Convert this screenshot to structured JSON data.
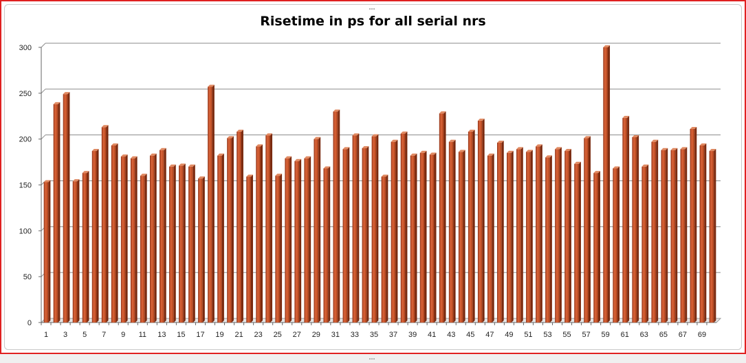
{
  "chart_data": {
    "type": "bar",
    "title": "Risetime in ps for all serial nrs",
    "xlabel": "",
    "ylabel": "",
    "ylim": [
      0,
      300
    ],
    "yticks": [
      0,
      50,
      100,
      150,
      200,
      250,
      300
    ],
    "grid": true,
    "legend": "none",
    "bar_color": "#c8552a",
    "categories": [
      1,
      2,
      3,
      4,
      5,
      6,
      7,
      8,
      9,
      10,
      11,
      12,
      13,
      14,
      15,
      16,
      17,
      18,
      19,
      20,
      21,
      22,
      23,
      24,
      25,
      26,
      27,
      28,
      29,
      30,
      31,
      32,
      33,
      34,
      35,
      36,
      37,
      38,
      39,
      40,
      41,
      42,
      43,
      44,
      45,
      46,
      47,
      48,
      49,
      50,
      51,
      52,
      53,
      54,
      55,
      56,
      57,
      58,
      59,
      60,
      61,
      62,
      63,
      64,
      65,
      66,
      67,
      68,
      69,
      70
    ],
    "xtick_labels": [
      "1",
      "3",
      "5",
      "7",
      "9",
      "11",
      "13",
      "15",
      "17",
      "19",
      "21",
      "23",
      "25",
      "27",
      "29",
      "31",
      "33",
      "35",
      "37",
      "39",
      "41",
      "43",
      "45",
      "47",
      "49",
      "51",
      "53",
      "55",
      "57",
      "59",
      "61",
      "63",
      "65",
      "67",
      "69"
    ],
    "values": [
      153,
      238,
      249,
      154,
      163,
      187,
      213,
      193,
      181,
      179,
      160,
      182,
      188,
      170,
      171,
      170,
      157,
      257,
      182,
      201,
      208,
      159,
      192,
      204,
      160,
      179,
      176,
      179,
      200,
      168,
      230,
      189,
      204,
      190,
      203,
      159,
      197,
      206,
      182,
      185,
      183,
      228,
      197,
      186,
      208,
      220,
      182,
      196,
      185,
      189,
      186,
      192,
      180,
      189,
      187,
      173,
      201,
      163,
      300,
      168,
      223,
      202,
      170,
      197,
      188,
      188,
      189,
      211,
      193,
      187
    ]
  }
}
